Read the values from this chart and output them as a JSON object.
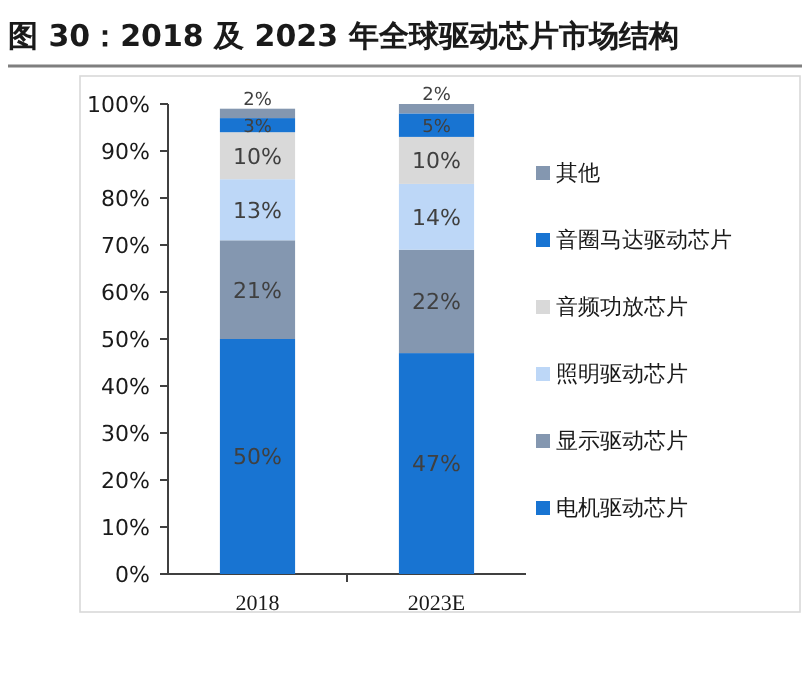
{
  "chart_data": {
    "type": "bar",
    "title": "图 30：2018 及 2023 年全球驱动芯片市场结构",
    "categories": [
      "2018",
      "2023E"
    ],
    "stacked": true,
    "legend": "right",
    "ylim": [
      0,
      100
    ],
    "yticks": [
      {
        "value": 0,
        "label": "0%"
      },
      {
        "value": 10,
        "label": "10%"
      },
      {
        "value": 20,
        "label": "20%"
      },
      {
        "value": 30,
        "label": "30%"
      },
      {
        "value": 40,
        "label": "40%"
      },
      {
        "value": 50,
        "label": "50%"
      },
      {
        "value": 60,
        "label": "60%"
      },
      {
        "value": 70,
        "label": "70%"
      },
      {
        "value": 80,
        "label": "80%"
      },
      {
        "value": 90,
        "label": "90%"
      },
      {
        "value": 100,
        "label": "100%"
      }
    ],
    "series": [
      {
        "name": "电机驱动芯片",
        "color": "#1874d2",
        "values": [
          50,
          47
        ],
        "value_labels": [
          "50%",
          "47%"
        ]
      },
      {
        "name": "显示驱动芯片",
        "color": "#8497b0",
        "values": [
          21,
          22
        ],
        "value_labels": [
          "21%",
          "22%"
        ]
      },
      {
        "name": "照明驱动芯片",
        "color": "#bdd7f7",
        "values": [
          13,
          14
        ],
        "value_labels": [
          "13%",
          "14%"
        ]
      },
      {
        "name": "音频功放芯片",
        "color": "#d9d9d9",
        "values": [
          10,
          10
        ],
        "value_labels": [
          "10%",
          "10%"
        ]
      },
      {
        "name": "音圈马达驱动芯片",
        "color": "#1874d2",
        "values": [
          3,
          5
        ],
        "value_labels": [
          "3%",
          "5%"
        ]
      },
      {
        "name": "其他",
        "color": "#8497b0",
        "values": [
          2,
          2
        ],
        "value_labels": [
          "2%",
          "2%"
        ]
      }
    ]
  }
}
